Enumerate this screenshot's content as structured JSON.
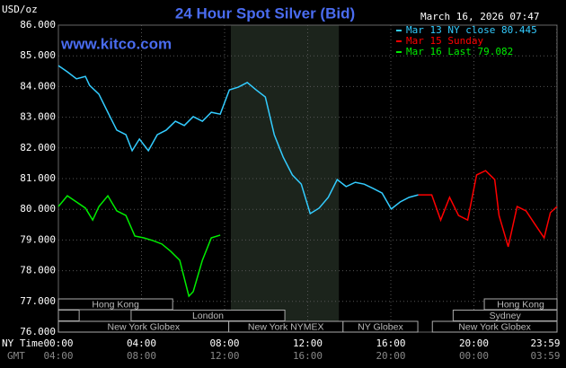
{
  "chart_data": {
    "type": "line",
    "title": "24 Hour Spot Silver (Bid)",
    "site": "www.kitco.com",
    "timestamp": "March 16, 2026 07:47",
    "y_unit": "USD/oz",
    "x_row_labels": [
      "NY Time",
      "GMT"
    ],
    "xlim": [
      0,
      24
    ],
    "ylim": [
      76,
      86
    ],
    "grid": true,
    "yticks": [
      {
        "value": 76,
        "label": "76.000"
      },
      {
        "value": 77,
        "label": "77.000"
      },
      {
        "value": 78,
        "label": "78.000"
      },
      {
        "value": 79,
        "label": "79.000"
      },
      {
        "value": 80,
        "label": "80.000"
      },
      {
        "value": 81,
        "label": "81.000"
      },
      {
        "value": 82,
        "label": "82.000"
      },
      {
        "value": 83,
        "label": "83.000"
      },
      {
        "value": 84,
        "label": "84.000"
      },
      {
        "value": 85,
        "label": "85.000"
      },
      {
        "value": 86,
        "label": "86.000"
      }
    ],
    "xticks": [
      {
        "value": 0,
        "label": "00:00",
        "gmt": "04:00"
      },
      {
        "value": 4,
        "label": "04:00",
        "gmt": "08:00"
      },
      {
        "value": 8,
        "label": "08:00",
        "gmt": "12:00"
      },
      {
        "value": 12,
        "label": "12:00",
        "gmt": "16:00"
      },
      {
        "value": 16,
        "label": "16:00",
        "gmt": "20:00"
      },
      {
        "value": 20,
        "label": "20:00",
        "gmt": "00:00"
      },
      {
        "value": 23.983,
        "label": "23:59",
        "gmt": "03:59"
      }
    ],
    "shade": [
      8.3,
      13.5
    ],
    "sessions": [
      {
        "label": "Hong Kong",
        "row": 0,
        "start": 0,
        "end": 5.5
      },
      {
        "label": "Hong Kong",
        "row": 0,
        "start": 20.5,
        "end": 24
      },
      {
        "label": "",
        "row": 1,
        "start": 0,
        "end": 1.0
      },
      {
        "label": "London",
        "row": 1,
        "start": 3.5,
        "end": 10.9
      },
      {
        "label": "Sydney",
        "row": 1,
        "start": 19.0,
        "end": 24
      },
      {
        "label": "New York Globex",
        "row": 2,
        "start": 0,
        "end": 8.2
      },
      {
        "label": "New York NYMEX",
        "row": 2,
        "start": 8.2,
        "end": 13.7
      },
      {
        "label": "NY Globex",
        "row": 2,
        "start": 13.7,
        "end": 17.3
      },
      {
        "label": "New York Globex",
        "row": 2,
        "start": 18.0,
        "end": 24
      }
    ],
    "series": [
      {
        "name": "Mar 13 NY close 80.445",
        "color": "#33ccff",
        "x": [
          0,
          0.43,
          0.87,
          1.3,
          1.5,
          1.95,
          2.38,
          2.81,
          3.25,
          3.55,
          3.9,
          4.33,
          4.76,
          5.19,
          5.63,
          6.06,
          6.49,
          6.93,
          7.36,
          7.79,
          8.23,
          8.66,
          9.09,
          9.52,
          9.96,
          10.39,
          10.82,
          11.26,
          11.69,
          12.12,
          12.55,
          12.99,
          13.42,
          13.85,
          14.29,
          14.72,
          15.15,
          15.58,
          16.02,
          16.45,
          16.88,
          17.32
        ],
        "values": [
          84.68,
          84.48,
          84.25,
          84.33,
          84.04,
          83.75,
          83.16,
          82.58,
          82.43,
          81.91,
          82.29,
          81.91,
          82.43,
          82.58,
          82.87,
          82.73,
          83.02,
          82.87,
          83.16,
          83.1,
          83.89,
          83.98,
          84.13,
          83.89,
          83.66,
          82.43,
          81.7,
          81.12,
          80.82,
          79.86,
          80.04,
          80.39,
          80.97,
          80.74,
          80.88,
          80.82,
          80.68,
          80.53,
          80.01,
          80.24,
          80.39,
          80.47
        ]
      },
      {
        "name": "Mar 15 Sunday",
        "color": "#ff0000",
        "x": [
          17.32,
          17.97,
          18.4,
          18.83,
          19.26,
          19.7,
          20.13,
          20.56,
          21.0,
          21.21,
          21.65,
          22.08,
          22.51,
          22.94,
          23.38,
          23.68,
          24.0
        ],
        "values": [
          80.47,
          80.47,
          79.65,
          80.39,
          79.8,
          79.65,
          81.12,
          81.26,
          80.97,
          79.8,
          78.78,
          80.09,
          79.95,
          79.51,
          79.07,
          79.89,
          80.09
        ]
      },
      {
        "name": "Mar 16 Last 79.082",
        "color": "#00ee00",
        "x": [
          0,
          0.43,
          0.87,
          1.3,
          1.65,
          1.95,
          2.38,
          2.81,
          3.25,
          3.68,
          4.11,
          4.55,
          4.98,
          5.41,
          5.84,
          6.28,
          6.49,
          6.93,
          7.36,
          7.79
        ],
        "values": [
          80.09,
          80.44,
          80.24,
          80.04,
          79.65,
          80.09,
          80.44,
          79.95,
          79.8,
          79.13,
          79.07,
          78.98,
          78.87,
          78.63,
          78.34,
          77.17,
          77.32,
          78.34,
          79.07,
          79.16
        ]
      }
    ]
  }
}
